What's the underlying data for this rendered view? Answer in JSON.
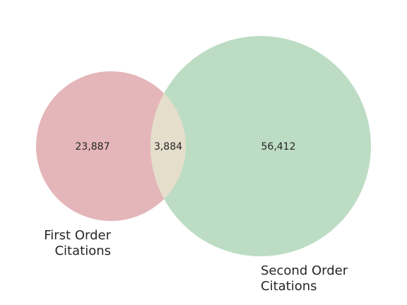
{
  "venn": {
    "sets": [
      {
        "id": "a",
        "label_lines": [
          "First Order",
          "Citations"
        ],
        "only_count": "23,887",
        "color": "#e4b6b9"
      },
      {
        "id": "b",
        "label_lines": [
          "Second Order",
          "Citations"
        ],
        "only_count": "56,412",
        "color": "#bcdcc4"
      }
    ],
    "intersection": {
      "count": "3,884",
      "color": "#e5decb"
    }
  }
}
